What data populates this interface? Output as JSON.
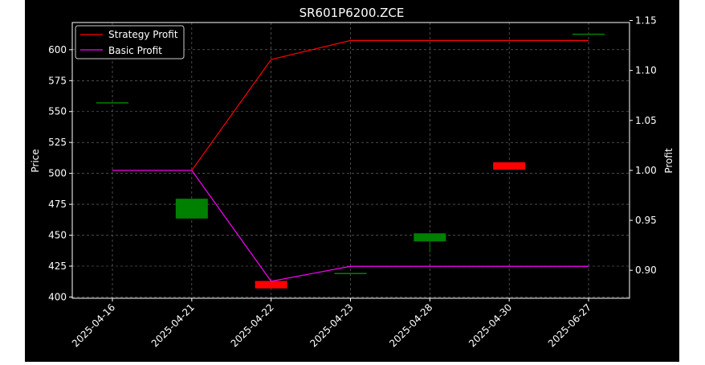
{
  "chart_data": {
    "type": "candlestick",
    "title": "SR601P6200.ZCE",
    "xlabel": "",
    "ylabel": "Price",
    "y2label": "Profit",
    "categories": [
      "2025-04-16",
      "2025-04-21",
      "2025-04-22",
      "2025-04-23",
      "2025-04-28",
      "2025-04-30",
      "2025-06-27"
    ],
    "ylim": [
      399,
      622
    ],
    "y2lim": [
      0.872,
      1.148
    ],
    "yticks": [
      400,
      425,
      450,
      475,
      500,
      525,
      550,
      575,
      600
    ],
    "y2ticks": [
      0.9,
      0.95,
      1.0,
      1.05,
      1.1,
      1.15
    ],
    "candles": [
      {
        "date": "2025-04-16",
        "open": 557.5,
        "high": 557.5,
        "low": 557.5,
        "close": 557.5
      },
      {
        "date": "2025-04-21",
        "open": 463.5,
        "high": 479.5,
        "low": 463.5,
        "close": 479.5
      },
      {
        "date": "2025-04-22",
        "open": 413.0,
        "high": 413.0,
        "low": 407.0,
        "close": 407.0
      },
      {
        "date": "2025-04-23",
        "open": 419.5,
        "high": 419.5,
        "low": 419.5,
        "close": 419.5
      },
      {
        "date": "2025-04-28",
        "open": 445.0,
        "high": 451.5,
        "low": 436.0,
        "close": 451.5
      },
      {
        "date": "2025-04-30",
        "open": 509.0,
        "high": 509.0,
        "low": 503.0,
        "close": 503.0
      },
      {
        "date": "2025-06-27",
        "open": 613.0,
        "high": 613.0,
        "low": 613.0,
        "close": 613.0
      }
    ],
    "series": [
      {
        "name": "Strategy Profit",
        "color": "#ff0000",
        "axis": "right",
        "values": [
          1.0,
          1.0,
          1.111,
          1.13,
          1.13,
          1.13,
          1.13
        ]
      },
      {
        "name": "Basic Profit",
        "color": "#ff00ff",
        "axis": "right",
        "values": [
          1.0,
          1.0,
          0.889,
          0.904,
          0.904,
          0.904,
          0.904
        ]
      }
    ],
    "up_color": "#008000",
    "down_color": "#ff0000",
    "background": "#000000",
    "grid": true,
    "legend_position": "top-left"
  }
}
